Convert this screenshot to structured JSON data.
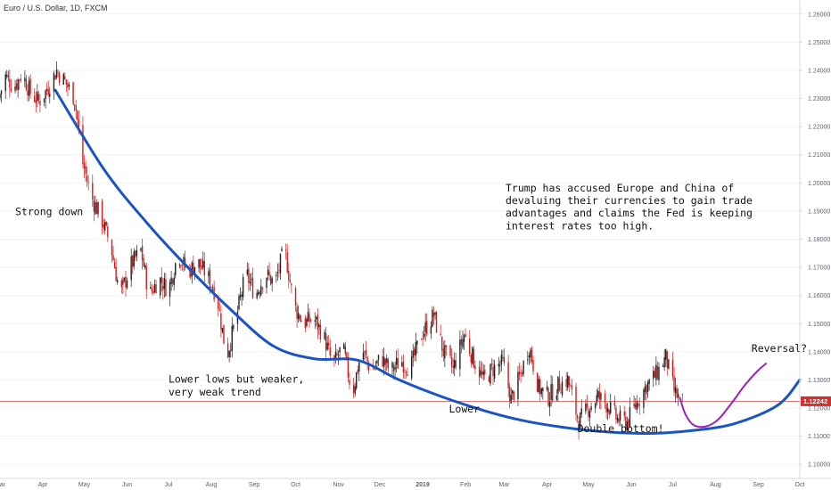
{
  "title": "Euro / U.S. Dollar, 1D, FXCM",
  "colors": {
    "up": "#222222",
    "down": "#cc2020",
    "curve": "#1a53c4",
    "reversal": "#a020c0",
    "price_line": "#d04848",
    "badge": "#d03030",
    "grid": "#f0f3f8",
    "axis_text": "#5d606b"
  },
  "chart_data": {
    "type": "candlestick",
    "y_axis": {
      "ticks": [
        "1.26000",
        "1.25000",
        "1.24000",
        "1.23000",
        "1.22000",
        "1.21000",
        "1.20000",
        "1.19000",
        "1.18000",
        "1.17000",
        "1.16000",
        "1.15000",
        "1.14000",
        "1.13000",
        "1.12000",
        "1.11000",
        "1.10000"
      ],
      "ylim": [
        1.095,
        1.265
      ],
      "position": "right"
    },
    "x_axis": {
      "ticks": [
        "Mar",
        "Apr",
        "May",
        "Jun",
        "Jul",
        "Aug",
        "Sep",
        "Oct",
        "Nov",
        "Dec",
        "2019",
        "Feb",
        "Mar",
        "Apr",
        "May",
        "Jun",
        "Jul",
        "Aug",
        "Sep",
        "Oct"
      ],
      "bold_ticks": [
        "2019"
      ],
      "start": "2018-03-01",
      "end": "2019-10-01"
    },
    "current_price": "1.12242",
    "price_path": [
      [
        "2018-03-01",
        1.23
      ],
      [
        "2018-03-06",
        1.238
      ],
      [
        "2018-03-12",
        1.234
      ],
      [
        "2018-03-18",
        1.239
      ],
      [
        "2018-03-24",
        1.232
      ],
      [
        "2018-03-30",
        1.229
      ],
      [
        "2018-04-05",
        1.233
      ],
      [
        "2018-04-12",
        1.24
      ],
      [
        "2018-04-18",
        1.236
      ],
      [
        "2018-04-25",
        1.23
      ],
      [
        "2018-05-01",
        1.207
      ],
      [
        "2018-05-07",
        1.195
      ],
      [
        "2018-05-14",
        1.188
      ],
      [
        "2018-05-21",
        1.178
      ],
      [
        "2018-05-28",
        1.16
      ],
      [
        "2018-06-05",
        1.171
      ],
      [
        "2018-06-12",
        1.176
      ],
      [
        "2018-06-18",
        1.16
      ],
      [
        "2018-06-25",
        1.166
      ],
      [
        "2018-07-02",
        1.162
      ],
      [
        "2018-07-09",
        1.175
      ],
      [
        "2018-07-16",
        1.168
      ],
      [
        "2018-07-23",
        1.172
      ],
      [
        "2018-07-30",
        1.167
      ],
      [
        "2018-08-06",
        1.16
      ],
      [
        "2018-08-13",
        1.138
      ],
      [
        "2018-08-20",
        1.152
      ],
      [
        "2018-08-27",
        1.168
      ],
      [
        "2018-09-03",
        1.16
      ],
      [
        "2018-09-10",
        1.168
      ],
      [
        "2018-09-17",
        1.164
      ],
      [
        "2018-09-24",
        1.177
      ],
      [
        "2018-10-01",
        1.156
      ],
      [
        "2018-10-08",
        1.15
      ],
      [
        "2018-10-15",
        1.152
      ],
      [
        "2018-10-22",
        1.146
      ],
      [
        "2018-10-29",
        1.135
      ],
      [
        "2018-11-05",
        1.142
      ],
      [
        "2018-11-12",
        1.125
      ],
      [
        "2018-11-19",
        1.141
      ],
      [
        "2018-11-26",
        1.133
      ],
      [
        "2018-12-03",
        1.138
      ],
      [
        "2018-12-10",
        1.133
      ],
      [
        "2018-12-17",
        1.137
      ],
      [
        "2018-12-24",
        1.134
      ],
      [
        "2019-01-01",
        1.146
      ],
      [
        "2019-01-10",
        1.153
      ],
      [
        "2019-01-17",
        1.14
      ],
      [
        "2019-01-24",
        1.134
      ],
      [
        "2019-02-01",
        1.146
      ],
      [
        "2019-02-08",
        1.137
      ],
      [
        "2019-02-15",
        1.13
      ],
      [
        "2019-02-22",
        1.134
      ],
      [
        "2019-03-01",
        1.136
      ],
      [
        "2019-03-07",
        1.123
      ],
      [
        "2019-03-14",
        1.132
      ],
      [
        "2019-03-20",
        1.142
      ],
      [
        "2019-03-27",
        1.127
      ],
      [
        "2019-04-03",
        1.124
      ],
      [
        "2019-04-10",
        1.128
      ],
      [
        "2019-04-17",
        1.13
      ],
      [
        "2019-04-25",
        1.115
      ],
      [
        "2019-05-02",
        1.12
      ],
      [
        "2019-05-09",
        1.124
      ],
      [
        "2019-05-16",
        1.121
      ],
      [
        "2019-05-23",
        1.116
      ],
      [
        "2019-05-30",
        1.115
      ],
      [
        "2019-06-06",
        1.122
      ],
      [
        "2019-06-13",
        1.128
      ],
      [
        "2019-06-20",
        1.132
      ],
      [
        "2019-06-27",
        1.138
      ],
      [
        "2019-07-03",
        1.126
      ],
      [
        "2019-07-08",
        1.122
      ]
    ],
    "trend_curve": [
      [
        "2018-04-10",
        1.233
      ],
      [
        "2018-05-15",
        1.205
      ],
      [
        "2018-06-15",
        1.186
      ],
      [
        "2018-07-15",
        1.17
      ],
      [
        "2018-08-15",
        1.155
      ],
      [
        "2018-09-15",
        1.142
      ],
      [
        "2018-10-15",
        1.1375
      ],
      [
        "2018-11-15",
        1.137
      ],
      [
        "2018-12-15",
        1.13
      ],
      [
        "2019-01-15",
        1.124
      ],
      [
        "2019-02-15",
        1.119
      ],
      [
        "2019-03-15",
        1.1155
      ],
      [
        "2019-04-15",
        1.113
      ],
      [
        "2019-05-15",
        1.1115
      ],
      [
        "2019-06-15",
        1.111
      ],
      [
        "2019-07-15",
        1.112
      ],
      [
        "2019-08-15",
        1.1145
      ],
      [
        "2019-09-15",
        1.121
      ],
      [
        "2019-10-01",
        1.13
      ]
    ],
    "reversal_path": [
      [
        "2019-07-06",
        1.124
      ],
      [
        "2019-07-10",
        1.118
      ],
      [
        "2019-07-16",
        1.114
      ],
      [
        "2019-07-25",
        1.1135
      ],
      [
        "2019-08-03",
        1.116
      ],
      [
        "2019-08-13",
        1.122
      ],
      [
        "2019-08-22",
        1.128
      ],
      [
        "2019-08-31",
        1.133
      ],
      [
        "2019-09-07",
        1.136
      ]
    ],
    "annotations": [
      {
        "text": "Strong down",
        "x": "2018-03-12",
        "y": 1.1885
      },
      {
        "text": "Lower lows but weaker,",
        "x": "2018-07-01",
        "y": 1.129
      },
      {
        "text": "very weak trend",
        "x": "2018-07-01",
        "y": 1.1245
      },
      {
        "text": "Lower",
        "x": "2019-01-20",
        "y": 1.1185
      },
      {
        "text": "Double bottom!",
        "x": "2019-04-23",
        "y": 1.1115
      },
      {
        "text": "Reversal?",
        "x": "2019-08-27",
        "y": 1.14
      },
      {
        "text": "Trump has accused Europe and China of",
        "x": "2019-03-02",
        "y": 1.197
      },
      {
        "text": "devaluing their currencies to gain trade",
        "x": "2019-03-02",
        "y": 1.1925
      },
      {
        "text": "advantages and claims the Fed is keeping",
        "x": "2019-03-02",
        "y": 1.188
      },
      {
        "text": "interest rates too high.",
        "x": "2019-03-02",
        "y": 1.1835
      }
    ]
  }
}
